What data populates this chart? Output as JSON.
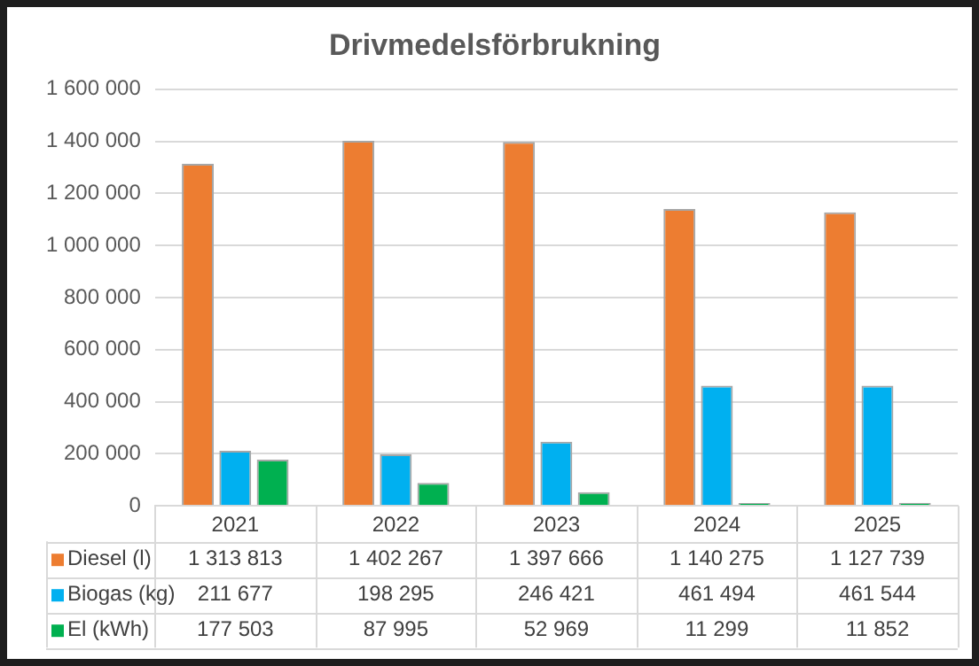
{
  "chart_data": {
    "type": "bar",
    "title": "Drivmedelsförbrukning",
    "categories": [
      "2021",
      "2022",
      "2023",
      "2024",
      "2025"
    ],
    "series": [
      {
        "name": "Diesel (l)",
        "color": "#ed7d31",
        "values": [
          1313813,
          1402267,
          1397666,
          1140275,
          1127739
        ],
        "value_labels": [
          "1 313 813",
          "1 402 267",
          "1 397 666",
          "1 140 275",
          "1 127 739"
        ]
      },
      {
        "name": "Biogas (kg)",
        "color": "#00b0f0",
        "values": [
          211677,
          198295,
          246421,
          461494,
          461544
        ],
        "value_labels": [
          "211 677",
          "198 295",
          "246 421",
          "461 494",
          "461 544"
        ]
      },
      {
        "name": "El (kWh)",
        "color": "#00b050",
        "values": [
          177503,
          87995,
          52969,
          11299,
          11852
        ],
        "value_labels": [
          "177 503",
          "87 995",
          "52 969",
          "11 299",
          "11 852"
        ]
      }
    ],
    "ylim": [
      0,
      1600000
    ],
    "yticks": [
      0,
      {
        "value": 200000,
        "label": "200 000"
      },
      {
        "value": 400000,
        "label": "400 000"
      },
      {
        "value": 600000,
        "label": "600 000"
      },
      {
        "value": 800000,
        "label": "800 000"
      },
      {
        "value": 1000000,
        "label": "1 000 000"
      },
      {
        "value": 1200000,
        "label": "1 200 000"
      },
      {
        "value": 1400000,
        "label": "1 400 000"
      },
      {
        "value": 1600000,
        "label": "1 600 000"
      }
    ],
    "grid": "y",
    "legend": "bottom"
  }
}
